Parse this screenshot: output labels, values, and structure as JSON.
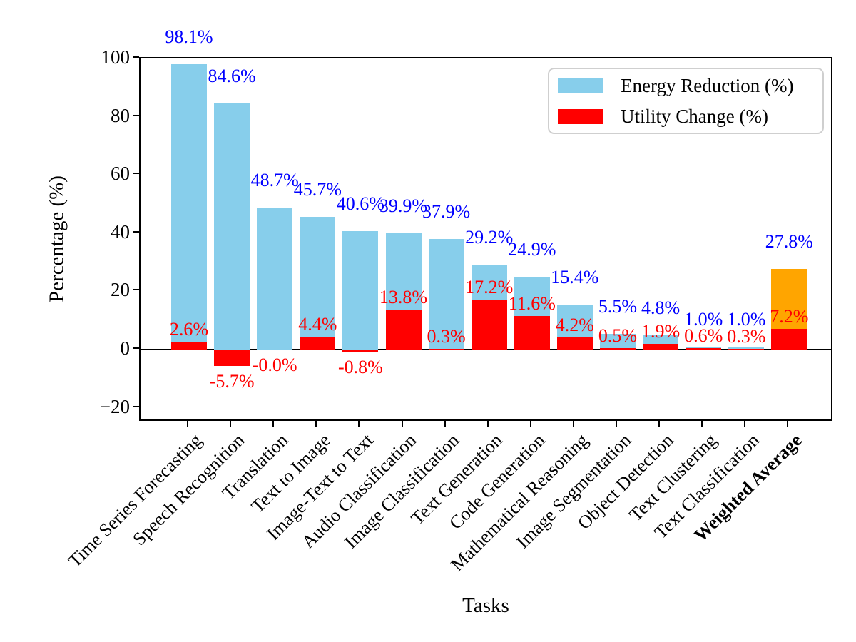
{
  "chart_data": {
    "type": "bar",
    "title": "",
    "xlabel": "Tasks",
    "ylabel": "Percentage (%)",
    "ylim": [
      -25,
      100
    ],
    "yticks": [
      100,
      80,
      60,
      40,
      20,
      0,
      -20
    ],
    "ytick_labels": [
      "100",
      "80",
      "60",
      "40",
      "20",
      "0",
      "−20"
    ],
    "grid": false,
    "legend_position": "upper right",
    "legend": [
      "Energy Reduction (%)",
      "Utility Change (%)"
    ],
    "categories": [
      "Time Series Forecasting",
      "Speech Recognition",
      "Translation",
      "Text to Image",
      "Image-Text to Text",
      "Audio Classification",
      "Image Classification",
      "Text Generation",
      "Code Generation",
      "Mathematical Reasoning",
      "Image Segmentation",
      "Object Detection",
      "Text Clustering",
      "Text Classification",
      "Weighted Average"
    ],
    "bold_categories": [
      "Weighted Average"
    ],
    "highlight_category": "Weighted Average",
    "series": [
      {
        "name": "Energy Reduction (%)",
        "values": [
          98.1,
          84.6,
          48.7,
          45.7,
          40.6,
          39.9,
          37.9,
          29.2,
          24.9,
          15.4,
          5.5,
          4.8,
          1.0,
          1.0,
          27.8
        ],
        "labels": [
          "98.1%",
          "84.6%",
          "48.7%",
          "45.7%",
          "40.6%",
          "39.9%",
          "37.9%",
          "29.2%",
          "24.9%",
          "15.4%",
          "5.5%",
          "4.8%",
          "1.0%",
          "1.0%",
          "27.8%"
        ]
      },
      {
        "name": "Utility Change (%)",
        "values": [
          2.6,
          -5.7,
          -0.0,
          4.4,
          -0.8,
          13.8,
          0.3,
          17.2,
          11.6,
          4.2,
          0.5,
          1.9,
          0.6,
          0.3,
          7.2
        ],
        "labels": [
          "2.6%",
          "-5.7%",
          "-0.0%",
          "4.4%",
          "-0.8%",
          "13.8%",
          "0.3%",
          "17.2%",
          "11.6%",
          "4.2%",
          "0.5%",
          "1.9%",
          "0.6%",
          "0.3%",
          "7.2%"
        ]
      }
    ],
    "colors": {
      "energy_bar": "#87CEEB",
      "utility_bar": "#FF0000",
      "highlight_bar": "#FFA500",
      "energy_label": "#0000FF",
      "utility_label": "#FF0000",
      "axis": "#000000",
      "legend_border": "#CFCFCF"
    }
  }
}
